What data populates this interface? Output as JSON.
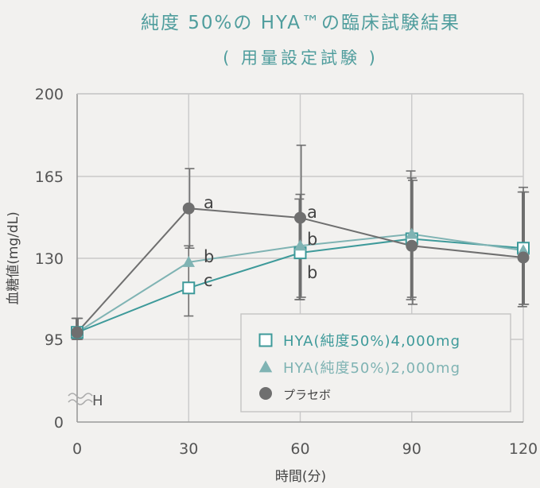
{
  "chart_data": {
    "type": "line",
    "title": "純度 50%の HYA™の臨床試験結果",
    "subtitle": "( 用量設定試験 )",
    "xlabel": "時間(分)",
    "ylabel": "血糖値(mg/dL)",
    "x": [
      0,
      30,
      60,
      90,
      120
    ],
    "x_ticks": [
      "0",
      "30",
      "60",
      "90",
      "120"
    ],
    "y_ticks": [
      "0",
      "95",
      "130",
      "165",
      "200"
    ],
    "y_break_label": "H",
    "ylim_displayed": [
      95,
      200
    ],
    "grid": true,
    "legend_position": "bottom-right",
    "series": [
      {
        "name": "HYA(純度50%)4,000mg",
        "marker": "square",
        "color": "#3e9a9a",
        "values": [
          98,
          117,
          132,
          138,
          134
        ],
        "error_low": [
          93,
          null,
          112,
          112,
          109
        ],
        "error_high": [
          104,
          null,
          155,
          167,
          158
        ],
        "labels": [
          "",
          "c",
          "b",
          "",
          ""
        ]
      },
      {
        "name": "HYA(純度50%)2,000mg",
        "marker": "triangle",
        "color": "#7fb3b3",
        "values": [
          98,
          128,
          135,
          140,
          133
        ],
        "error_low": [
          93,
          105,
          112,
          113,
          110
        ],
        "error_high": [
          104,
          135,
          157,
          164,
          160
        ],
        "labels": [
          "",
          "b",
          "b",
          "",
          ""
        ]
      },
      {
        "name": "プラセボ",
        "marker": "circle",
        "color": "#6f6f6f",
        "values": [
          98,
          151,
          147,
          135,
          130
        ],
        "error_low": [
          93,
          134,
          113,
          110,
          110
        ],
        "error_high": [
          104,
          168,
          178,
          163,
          158
        ],
        "labels": [
          "",
          "a",
          "a",
          "",
          ""
        ]
      }
    ],
    "colors": {
      "title": "#4f9d9d",
      "axis_text": "#555555",
      "grid": "#c9c9c9",
      "error": "#6f6f6f"
    }
  }
}
